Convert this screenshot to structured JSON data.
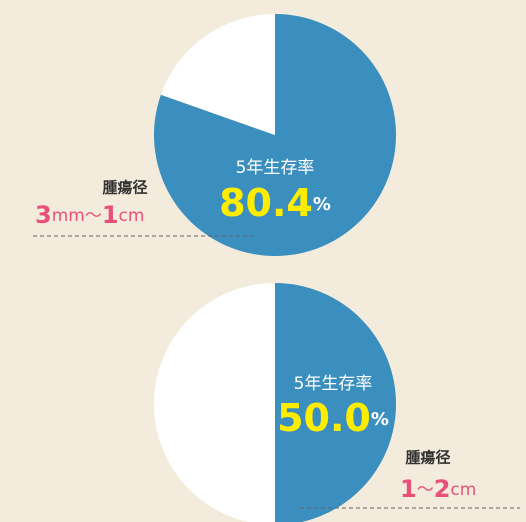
{
  "chart_data": [
    {
      "type": "pie",
      "title": "5年生存率",
      "values": [
        80.4,
        19.6
      ],
      "value_labels": [
        "80.4",
        null
      ],
      "unit": "%",
      "colors": [
        "#3a8fbf",
        "#ffffff"
      ],
      "annotation_label": "腫瘍径",
      "size_parts": [
        "3",
        "mm",
        "〜",
        "1",
        "cm"
      ],
      "annotation_side": "left"
    },
    {
      "type": "pie",
      "title": "5年生存率",
      "values": [
        50.0,
        50.0
      ],
      "value_labels": [
        "50.0",
        null
      ],
      "unit": "%",
      "colors": [
        "#3a8fbf",
        "#ffffff"
      ],
      "annotation_label": "腫瘍径",
      "size_parts": [
        "1",
        "〜",
        "2",
        "cm"
      ],
      "annotation_side": "right"
    }
  ]
}
